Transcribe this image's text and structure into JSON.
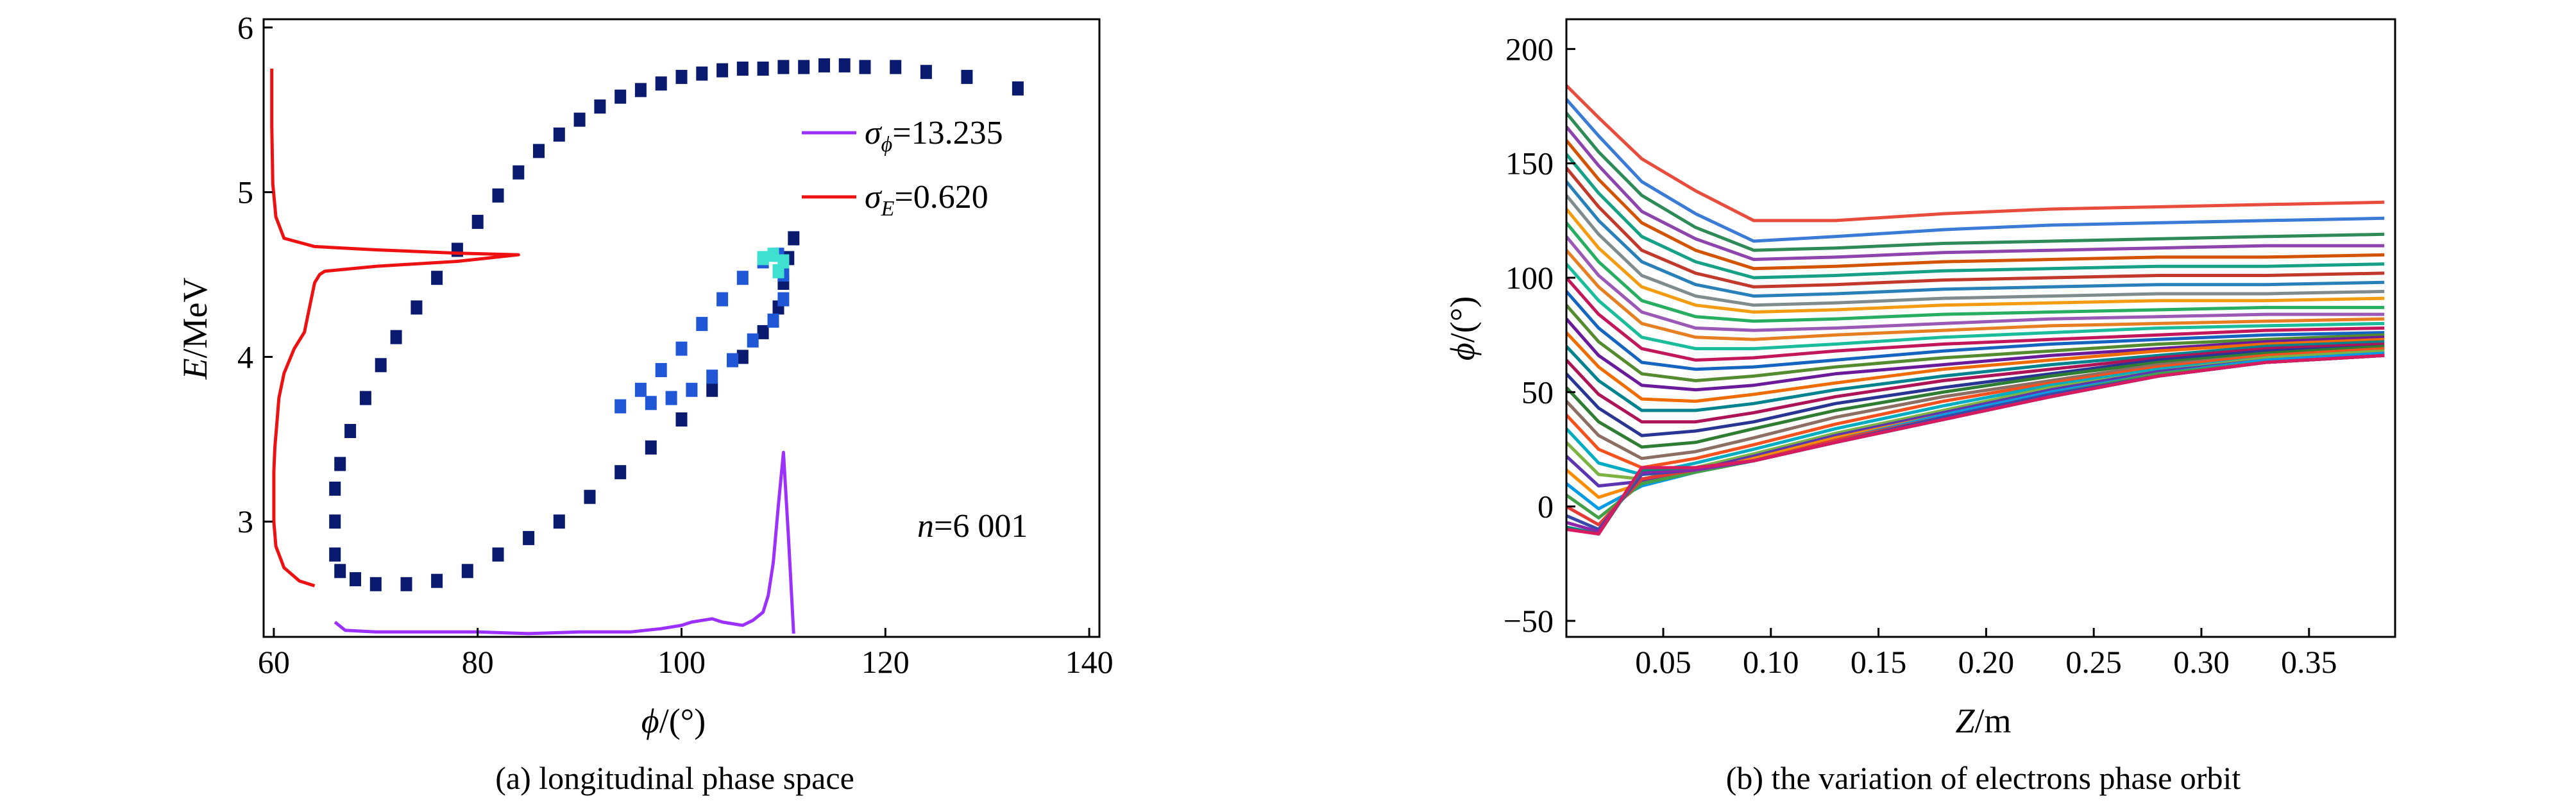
{
  "chart_data": [
    {
      "id": "a",
      "type": "scatter",
      "caption": "(a) longitudinal phase space",
      "xlabel": {
        "symbol": "ϕ",
        "unit": "/(°)"
      },
      "ylabel": {
        "symbol": "E",
        "unit": "/MeV"
      },
      "xlim": [
        59,
        141
      ],
      "ylim": [
        2.3,
        6.05
      ],
      "xticks": [
        60,
        80,
        100,
        120,
        140
      ],
      "yticks": [
        3,
        4,
        5,
        6
      ],
      "annotation": {
        "symbol": "n",
        "text": "=6 001"
      },
      "legend": {
        "placement": "top-right",
        "entries": [
          {
            "symbol": "σ",
            "sub": "ϕ",
            "value": "=13.235",
            "color": "#9b30ff"
          },
          {
            "symbol": "σ",
            "sub": "E",
            "value": "=0.620",
            "color": "#ee1111"
          }
        ]
      },
      "series": [
        {
          "kind": "density-outer-ring",
          "color": "#0a1a6e",
          "points": [
            [
              66,
              3.2
            ],
            [
              66,
              3.0
            ],
            [
              66,
              2.8
            ],
            [
              66.5,
              2.7
            ],
            [
              68,
              2.65
            ],
            [
              70,
              2.62
            ],
            [
              73,
              2.62
            ],
            [
              76,
              2.64
            ],
            [
              79,
              2.7
            ],
            [
              82,
              2.8
            ],
            [
              85,
              2.9
            ],
            [
              88,
              3.0
            ],
            [
              91,
              3.15
            ],
            [
              94,
              3.3
            ],
            [
              97,
              3.45
            ],
            [
              100,
              3.62
            ],
            [
              103,
              3.8
            ],
            [
              106,
              4.0
            ],
            [
              108,
              4.15
            ],
            [
              109.5,
              4.3
            ],
            [
              110,
              4.45
            ],
            [
              110.5,
              4.6
            ],
            [
              111,
              4.72
            ],
            [
              66.5,
              3.35
            ],
            [
              67.5,
              3.55
            ],
            [
              69,
              3.75
            ],
            [
              70.5,
              3.95
            ],
            [
              72,
              4.12
            ],
            [
              74,
              4.3
            ],
            [
              76,
              4.48
            ],
            [
              78,
              4.65
            ],
            [
              80,
              4.82
            ],
            [
              82,
              4.98
            ],
            [
              84,
              5.12
            ],
            [
              86,
              5.25
            ],
            [
              88,
              5.35
            ],
            [
              90,
              5.44
            ],
            [
              92,
              5.52
            ],
            [
              94,
              5.58
            ],
            [
              96,
              5.62
            ],
            [
              98,
              5.66
            ],
            [
              100,
              5.7
            ],
            [
              102,
              5.72
            ],
            [
              104,
              5.74
            ],
            [
              106,
              5.75
            ],
            [
              108,
              5.75
            ],
            [
              110,
              5.76
            ],
            [
              112,
              5.76
            ],
            [
              114,
              5.77
            ],
            [
              116,
              5.77
            ],
            [
              118,
              5.76
            ],
            [
              121,
              5.76
            ],
            [
              124,
              5.73
            ],
            [
              128,
              5.7
            ],
            [
              133,
              5.63
            ]
          ]
        },
        {
          "kind": "density-inner-loop",
          "color": "#1f57d6",
          "points": [
            [
              94,
              3.7
            ],
            [
              96,
              3.8
            ],
            [
              98,
              3.92
            ],
            [
              100,
              4.05
            ],
            [
              102,
              4.2
            ],
            [
              104,
              4.35
            ],
            [
              106,
              4.48
            ],
            [
              108,
              4.58
            ],
            [
              109.5,
              4.62
            ],
            [
              110,
              4.5
            ],
            [
              110,
              4.35
            ],
            [
              109,
              4.22
            ],
            [
              107,
              4.1
            ],
            [
              105,
              3.98
            ],
            [
              103,
              3.88
            ],
            [
              101,
              3.8
            ],
            [
              99,
              3.75
            ],
            [
              97,
              3.72
            ]
          ]
        },
        {
          "kind": "density-hot",
          "color": "#3fe0d0",
          "points": [
            [
              108,
              4.6
            ],
            [
              109,
              4.62
            ],
            [
              110,
              4.58
            ],
            [
              109.5,
              4.52
            ]
          ]
        }
      ],
      "projections": [
        {
          "name": "phi-distribution",
          "color": "#9b30ff",
          "x": [
            66,
            67,
            70,
            75,
            80,
            85,
            90,
            95,
            98,
            100,
            101,
            102,
            103,
            104,
            105,
            106,
            107,
            108,
            108.5,
            109,
            109.5,
            110,
            110.5,
            111
          ],
          "y": [
            2.39,
            2.34,
            2.33,
            2.33,
            2.33,
            2.32,
            2.33,
            2.33,
            2.35,
            2.37,
            2.39,
            2.4,
            2.41,
            2.39,
            2.38,
            2.37,
            2.4,
            2.45,
            2.55,
            2.75,
            3.1,
            3.42,
            2.9,
            2.32
          ]
        },
        {
          "name": "E-distribution",
          "color": "#ee1111",
          "x": [
            59.8,
            59.8,
            59.9,
            60.2,
            61,
            64,
            70,
            78,
            84,
            78,
            70,
            65,
            64.5,
            64,
            63.5,
            63,
            62,
            61,
            60.5,
            60.3,
            60.1,
            60.0,
            60.0,
            60.0,
            60.2,
            61,
            62.5,
            64
          ],
          "y": [
            5.75,
            5.4,
            5.05,
            4.85,
            4.72,
            4.67,
            4.65,
            4.63,
            4.62,
            4.58,
            4.55,
            4.52,
            4.5,
            4.45,
            4.3,
            4.15,
            4.05,
            3.9,
            3.75,
            3.6,
            3.45,
            3.3,
            3.15,
            3.0,
            2.85,
            2.72,
            2.64,
            2.61
          ]
        }
      ]
    },
    {
      "id": "b",
      "type": "line",
      "caption": "(b) the variation of electrons phase orbit",
      "xlabel": {
        "symbol": "Z",
        "unit": "/m"
      },
      "ylabel": {
        "symbol": "ϕ",
        "unit": "/(°)"
      },
      "xlim": [
        0.005,
        0.39
      ],
      "ylim": [
        -57,
        213
      ],
      "xticks": [
        0.05,
        0.1,
        0.15,
        0.2,
        0.25,
        0.3,
        0.35
      ],
      "xticklabels": [
        "0.05",
        "0.10",
        "0.15",
        "0.20",
        "0.25",
        "0.30",
        "0.35"
      ],
      "yticks": [
        -50,
        0,
        50,
        100,
        150,
        200
      ],
      "yticklabels": [
        "−50",
        "0",
        "50",
        "100",
        "150",
        "200"
      ],
      "z": [
        0.005,
        0.02,
        0.04,
        0.065,
        0.092,
        0.13,
        0.18,
        0.23,
        0.28,
        0.33,
        0.385
      ],
      "series_count": 36,
      "series": [
        {
          "color": "#e74c3c",
          "values": [
            184,
            170,
            152,
            138,
            125,
            125,
            128,
            130,
            131,
            132,
            133
          ]
        },
        {
          "color": "#3a7bd5",
          "values": [
            178,
            162,
            142,
            128,
            116,
            118,
            121,
            123,
            124,
            125,
            126
          ]
        },
        {
          "color": "#2e8b57",
          "values": [
            172,
            155,
            136,
            122,
            112,
            113,
            115,
            116,
            117,
            118,
            119
          ]
        },
        {
          "color": "#8e44ad",
          "values": [
            166,
            149,
            129,
            117,
            108,
            109,
            111,
            112,
            113,
            114,
            114
          ]
        },
        {
          "color": "#d35400",
          "values": [
            160,
            143,
            124,
            112,
            104,
            105,
            107,
            108,
            109,
            109,
            110
          ]
        },
        {
          "color": "#16a085",
          "values": [
            154,
            137,
            118,
            107,
            100,
            101,
            103,
            104,
            105,
            105,
            106
          ]
        },
        {
          "color": "#c0392b",
          "values": [
            148,
            131,
            112,
            102,
            96,
            97,
            99,
            100,
            101,
            101,
            102
          ]
        },
        {
          "color": "#2980b9",
          "values": [
            142,
            125,
            107,
            97,
            92,
            93,
            95,
            96,
            97,
            97,
            98
          ]
        },
        {
          "color": "#7f8c8d",
          "values": [
            136,
            119,
            101,
            92,
            88,
            89,
            91,
            92,
            93,
            93,
            94
          ]
        },
        {
          "color": "#f39c12",
          "values": [
            130,
            113,
            96,
            88,
            85,
            86,
            88,
            89,
            90,
            90,
            91
          ]
        },
        {
          "color": "#27ae60",
          "values": [
            124,
            107,
            90,
            83,
            81,
            82,
            84,
            85,
            86,
            87,
            87
          ]
        },
        {
          "color": "#9b59b6",
          "values": [
            118,
            101,
            85,
            78,
            77,
            78,
            80,
            82,
            83,
            84,
            84
          ]
        },
        {
          "color": "#e67e22",
          "values": [
            112,
            96,
            80,
            74,
            73,
            75,
            77,
            79,
            80,
            81,
            82
          ]
        },
        {
          "color": "#1abc9c",
          "values": [
            106,
            90,
            74,
            69,
            69,
            71,
            74,
            76,
            78,
            79,
            80
          ]
        },
        {
          "color": "#c2185b",
          "values": [
            100,
            84,
            69,
            64,
            65,
            68,
            71,
            73,
            75,
            77,
            78
          ]
        },
        {
          "color": "#1565c0",
          "values": [
            94,
            78,
            63,
            60,
            61,
            64,
            68,
            71,
            73,
            75,
            76
          ]
        },
        {
          "color": "#558b2f",
          "values": [
            88,
            72,
            58,
            55,
            57,
            61,
            65,
            68,
            71,
            73,
            75
          ]
        },
        {
          "color": "#6a1b9a",
          "values": [
            82,
            66,
            53,
            51,
            53,
            58,
            62,
            66,
            69,
            72,
            74
          ]
        },
        {
          "color": "#ef6c00",
          "values": [
            76,
            61,
            47,
            46,
            49,
            54,
            60,
            64,
            68,
            71,
            73
          ]
        },
        {
          "color": "#00838f",
          "values": [
            70,
            55,
            42,
            42,
            45,
            51,
            57,
            62,
            66,
            70,
            72
          ]
        },
        {
          "color": "#ad1457",
          "values": [
            64,
            49,
            37,
            37,
            41,
            48,
            55,
            60,
            65,
            69,
            71
          ]
        },
        {
          "color": "#283593",
          "values": [
            58,
            43,
            31,
            33,
            37,
            45,
            52,
            58,
            64,
            68,
            70
          ]
        },
        {
          "color": "#2e7d32",
          "values": [
            52,
            37,
            26,
            28,
            34,
            42,
            50,
            57,
            63,
            67,
            70
          ]
        },
        {
          "color": "#8d6e63",
          "values": [
            46,
            31,
            21,
            24,
            30,
            39,
            48,
            55,
            62,
            66,
            69
          ]
        },
        {
          "color": "#f4511e",
          "values": [
            40,
            25,
            17,
            21,
            27,
            36,
            46,
            54,
            61,
            66,
            69
          ]
        },
        {
          "color": "#00acc1",
          "values": [
            34,
            19,
            14,
            19,
            25,
            34,
            44,
            53,
            60,
            65,
            68
          ]
        },
        {
          "color": "#7cb342",
          "values": [
            28,
            14,
            12,
            17,
            23,
            32,
            42,
            52,
            59,
            65,
            68
          ]
        },
        {
          "color": "#5e35b1",
          "values": [
            22,
            9,
            11,
            16,
            22,
            31,
            41,
            51,
            59,
            64,
            67
          ]
        },
        {
          "color": "#fb8c00",
          "values": [
            16,
            4,
            10,
            15,
            21,
            30,
            40,
            50,
            58,
            64,
            67
          ]
        },
        {
          "color": "#039be5",
          "values": [
            10,
            -1,
            9,
            15,
            20,
            29,
            40,
            50,
            58,
            64,
            67
          ]
        },
        {
          "color": "#43a047",
          "values": [
            5,
            -5,
            10,
            15,
            20,
            29,
            39,
            49,
            58,
            63,
            66
          ]
        },
        {
          "color": "#e53935",
          "values": [
            0,
            -8,
            12,
            16,
            20,
            29,
            39,
            49,
            57,
            63,
            66
          ]
        },
        {
          "color": "#3949ab",
          "values": [
            -4,
            -10,
            14,
            16,
            20,
            28,
            39,
            49,
            57,
            63,
            66
          ]
        },
        {
          "color": "#8e24aa",
          "values": [
            -7,
            -11,
            15,
            16,
            20,
            28,
            38,
            48,
            57,
            63,
            66
          ]
        },
        {
          "color": "#00897b",
          "values": [
            -9,
            -12,
            16,
            17,
            20,
            28,
            38,
            48,
            57,
            63,
            66
          ]
        },
        {
          "color": "#d81b60",
          "values": [
            -10,
            -12,
            17,
            17,
            20,
            28,
            38,
            48,
            57,
            63,
            66
          ]
        }
      ]
    }
  ]
}
